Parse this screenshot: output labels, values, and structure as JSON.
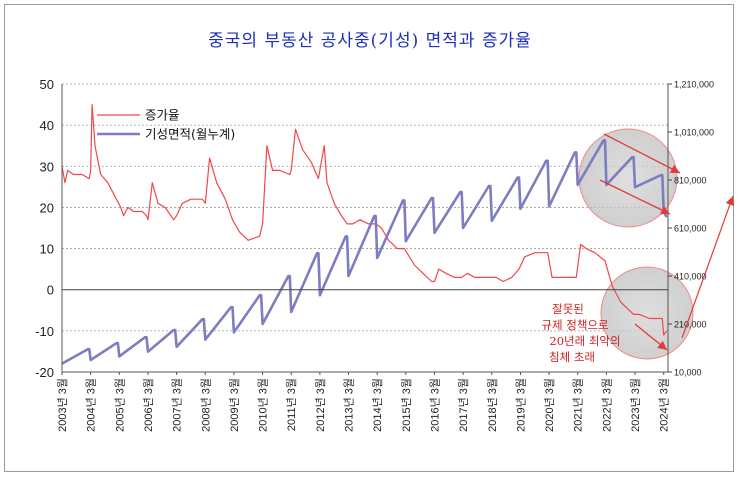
{
  "chart_data": {
    "type": "line",
    "title": "중국의 부동산 공사중(기성) 면적과 증가율",
    "x_labels": [
      "2003년 3월",
      "2004년 3월",
      "2005년 3월",
      "2006년 3월",
      "2007년 3월",
      "2008년 3월",
      "2009년 3월",
      "2010년 3월",
      "2011년 3월",
      "2012년 3월",
      "2013년 3월",
      "2014년 3월",
      "2015년 3월",
      "2016년 3월",
      "2017년 3월",
      "2018년 3월",
      "2019년 3월",
      "2020년 3월",
      "2021년 3월",
      "2022년 3월",
      "2023년 3월",
      "2024년 3월"
    ],
    "left_axis": {
      "ylim": [
        -20,
        50
      ],
      "ticks": [
        "50",
        "40",
        "30",
        "20",
        "10",
        "0",
        "-10",
        "-20"
      ]
    },
    "right_axis": {
      "ylim": [
        10000,
        1210000
      ],
      "ticks": [
        "1,210,000",
        "1,010,000",
        "810,000",
        "610,000",
        "410,000",
        "210,000",
        "10,000"
      ]
    },
    "series": [
      {
        "name": "증가율",
        "axis": "left",
        "color": "#f0484a",
        "points": [
          [
            2003.0,
            30
          ],
          [
            2003.1,
            26
          ],
          [
            2003.2,
            29
          ],
          [
            2003.4,
            28
          ],
          [
            2003.7,
            28
          ],
          [
            2003.95,
            27
          ],
          [
            2004.0,
            29
          ],
          [
            2004.05,
            45
          ],
          [
            2004.15,
            35
          ],
          [
            2004.35,
            28
          ],
          [
            2004.6,
            26
          ],
          [
            2004.9,
            22
          ],
          [
            2005.05,
            20
          ],
          [
            2005.15,
            18
          ],
          [
            2005.3,
            20
          ],
          [
            2005.5,
            19
          ],
          [
            2005.8,
            19
          ],
          [
            2005.95,
            18
          ],
          [
            2006.0,
            17
          ],
          [
            2006.15,
            26
          ],
          [
            2006.35,
            21
          ],
          [
            2006.6,
            20
          ],
          [
            2006.9,
            17
          ],
          [
            2007.0,
            18
          ],
          [
            2007.2,
            21
          ],
          [
            2007.5,
            22
          ],
          [
            2007.9,
            22
          ],
          [
            2008.0,
            21
          ],
          [
            2008.15,
            32
          ],
          [
            2008.4,
            26
          ],
          [
            2008.7,
            22
          ],
          [
            2008.95,
            17
          ],
          [
            2009.2,
            14
          ],
          [
            2009.5,
            12
          ],
          [
            2009.9,
            13
          ],
          [
            2010.0,
            16
          ],
          [
            2010.15,
            35
          ],
          [
            2010.35,
            29
          ],
          [
            2010.6,
            29
          ],
          [
            2010.95,
            28
          ],
          [
            2011.0,
            29
          ],
          [
            2011.15,
            39
          ],
          [
            2011.4,
            34
          ],
          [
            2011.7,
            31
          ],
          [
            2011.95,
            27
          ],
          [
            2012.15,
            35
          ],
          [
            2012.25,
            26
          ],
          [
            2012.5,
            21
          ],
          [
            2012.75,
            18
          ],
          [
            2012.95,
            16
          ],
          [
            2013.15,
            16
          ],
          [
            2013.4,
            17
          ],
          [
            2013.7,
            16
          ],
          [
            2013.95,
            16
          ],
          [
            2014.15,
            15
          ],
          [
            2014.4,
            12
          ],
          [
            2014.7,
            10
          ],
          [
            2014.95,
            10
          ],
          [
            2015.3,
            6
          ],
          [
            2015.6,
            4
          ],
          [
            2015.9,
            2
          ],
          [
            2016.0,
            2
          ],
          [
            2016.15,
            5
          ],
          [
            2016.4,
            4
          ],
          [
            2016.7,
            3
          ],
          [
            2016.95,
            3
          ],
          [
            2017.15,
            4
          ],
          [
            2017.4,
            3
          ],
          [
            2017.7,
            3
          ],
          [
            2017.95,
            3
          ],
          [
            2018.15,
            3
          ],
          [
            2018.4,
            2
          ],
          [
            2018.7,
            3
          ],
          [
            2018.95,
            5
          ],
          [
            2019.15,
            8
          ],
          [
            2019.5,
            9
          ],
          [
            2019.95,
            9
          ],
          [
            2020.1,
            3
          ],
          [
            2020.3,
            3
          ],
          [
            2020.6,
            3
          ],
          [
            2020.95,
            3
          ],
          [
            2021.1,
            11
          ],
          [
            2021.3,
            10
          ],
          [
            2021.6,
            9
          ],
          [
            2021.95,
            7
          ],
          [
            2022.2,
            1
          ],
          [
            2022.5,
            -3
          ],
          [
            2022.8,
            -5
          ],
          [
            2022.95,
            -6
          ],
          [
            2023.15,
            -6
          ],
          [
            2023.5,
            -7
          ],
          [
            2023.8,
            -7
          ],
          [
            2023.95,
            -7
          ],
          [
            2024.0,
            -11
          ],
          [
            2024.1,
            -10
          ]
        ]
      },
      {
        "name": "기성면적(월누계)",
        "axis": "right",
        "color": "#7d7dc2",
        "points": [
          [
            2003.0,
            45000
          ],
          [
            2003.9,
            105000
          ],
          [
            2003.95,
            105000
          ],
          [
            2004.0,
            60000
          ],
          [
            2004.9,
            130000
          ],
          [
            2004.95,
            130000
          ],
          [
            2005.0,
            75000
          ],
          [
            2005.9,
            155000
          ],
          [
            2005.95,
            155000
          ],
          [
            2006.0,
            95000
          ],
          [
            2006.9,
            185000
          ],
          [
            2006.95,
            185000
          ],
          [
            2007.0,
            115000
          ],
          [
            2007.9,
            230000
          ],
          [
            2007.95,
            230000
          ],
          [
            2008.0,
            145000
          ],
          [
            2008.9,
            280000
          ],
          [
            2008.95,
            280000
          ],
          [
            2009.0,
            175000
          ],
          [
            2009.9,
            330000
          ],
          [
            2009.95,
            330000
          ],
          [
            2010.0,
            210000
          ],
          [
            2010.9,
            410000
          ],
          [
            2010.95,
            410000
          ],
          [
            2011.0,
            260000
          ],
          [
            2011.9,
            505000
          ],
          [
            2011.95,
            505000
          ],
          [
            2012.0,
            330000
          ],
          [
            2012.9,
            575000
          ],
          [
            2012.95,
            575000
          ],
          [
            2013.0,
            410000
          ],
          [
            2013.9,
            660000
          ],
          [
            2013.95,
            660000
          ],
          [
            2014.0,
            485000
          ],
          [
            2014.9,
            725000
          ],
          [
            2014.95,
            725000
          ],
          [
            2015.0,
            555000
          ],
          [
            2015.9,
            735000
          ],
          [
            2015.95,
            735000
          ],
          [
            2016.0,
            590000
          ],
          [
            2016.9,
            760000
          ],
          [
            2016.95,
            760000
          ],
          [
            2017.0,
            610000
          ],
          [
            2017.9,
            785000
          ],
          [
            2017.95,
            785000
          ],
          [
            2018.0,
            640000
          ],
          [
            2018.9,
            820000
          ],
          [
            2018.95,
            820000
          ],
          [
            2019.0,
            690000
          ],
          [
            2019.9,
            890000
          ],
          [
            2019.95,
            890000
          ],
          [
            2020.0,
            700000
          ],
          [
            2020.9,
            925000
          ],
          [
            2020.95,
            925000
          ],
          [
            2021.0,
            790000
          ],
          [
            2021.9,
            975000
          ],
          [
            2021.95,
            975000
          ],
          [
            2022.0,
            790000
          ],
          [
            2022.9,
            905000
          ],
          [
            2022.95,
            905000
          ],
          [
            2023.0,
            780000
          ],
          [
            2023.9,
            830000
          ],
          [
            2023.95,
            830000
          ],
          [
            2024.0,
            680000
          ],
          [
            2024.1,
            655000
          ]
        ]
      }
    ],
    "legend": [
      "증가율",
      "기성면적(월누계)"
    ],
    "annotation": [
      "잘못된",
      "규제 정책으로",
      "20년래 최악의",
      "침체 초래"
    ]
  }
}
